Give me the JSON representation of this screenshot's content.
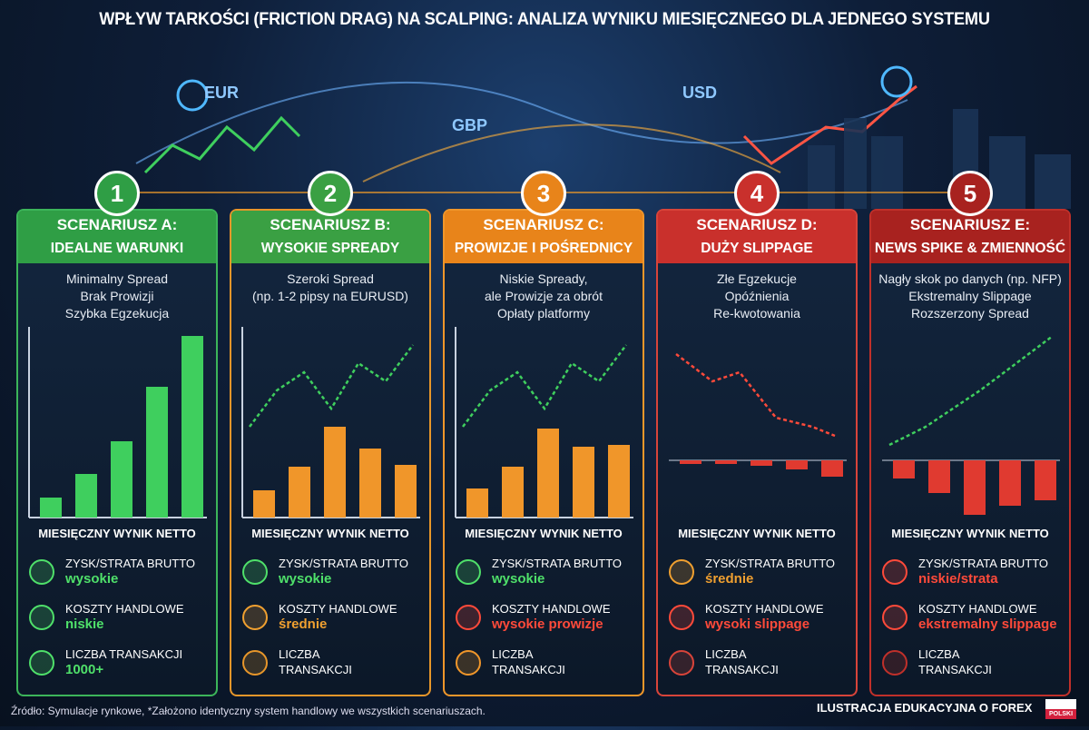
{
  "header": {
    "title": "WPŁYW TARKOŚCI (FRICTION DRAG) NA SCALPING: ANALIZA WYNIKU MIESIĘCZNEGO DLA JEDNEGO SYSTEMU"
  },
  "map_labels": [
    "EUR",
    "GBP",
    "USD"
  ],
  "panels": [
    {
      "number": 1,
      "title": "SCENARIUSZ A:",
      "subtitle": "IDEALNE WARUNKI",
      "color": "#2f9e45",
      "border": "#3cb55a",
      "description": [
        "Minimalny Spread",
        "Brak Prowizji",
        "Szybka Egzekucja"
      ],
      "bars": [
        11,
        24,
        42,
        72,
        100
      ],
      "bar_color": "#3fcf5e",
      "result_label": "MIESIĘCZNY WYNIK NETTO",
      "metrics": [
        {
          "label": "ZYSK/STRATA BRUTTO",
          "value": "wysokie",
          "color": "#4fe06a"
        },
        {
          "label": "KOSZTY HANDLOWE",
          "value": "niskie",
          "color": "#4fe06a"
        },
        {
          "label": "LICZBA TRANSAKCJI",
          "value": "1000+",
          "color": "#4fe06a"
        }
      ]
    },
    {
      "number": 2,
      "title": "SCENARIUSZ B:",
      "subtitle": "WYSOKIE SPREADY",
      "color": "#3aa043",
      "border": "#e7962a",
      "description": [
        "Szeroki Spread",
        "(np. 1-2 pipsy na EURUSD)"
      ],
      "bars": [
        15,
        28,
        50,
        38,
        29
      ],
      "bar_color": "#f0962a",
      "result_label": "MIESIĘCZNY WYNIK NETTO",
      "metrics": [
        {
          "label": "ZYSK/STRATA BRUTTO",
          "value": "wysokie",
          "color": "#4fe06a"
        },
        {
          "label": "KOSZTY HANDLOWE",
          "value": "średnie",
          "color": "#f0a030"
        },
        {
          "label": "LICZBA TRANSAKCJI"
        }
      ]
    },
    {
      "number": 3,
      "title": "SCENARIUSZ C:",
      "subtitle": "PROWIZJE I POŚREDNICY",
      "color": "#e8841a",
      "border": "#f0962a",
      "description": [
        "Niskie Spready,",
        "ale Prowizje za obrót",
        "Opłaty platformy"
      ],
      "bars": [
        16,
        28,
        49,
        39,
        40
      ],
      "bar_color": "#f0962a",
      "result_label": "MIESIĘCZNY WYNIK NETTO",
      "metrics": [
        {
          "label": "ZYSK/STRATA BRUTTO",
          "value": "wysokie",
          "color": "#4fe06a"
        },
        {
          "label": "KOSZTY HANDLOWE",
          "value": "wysokie prowizje",
          "color": "#ff4a3a"
        },
        {
          "label": "LICZBA TRANSAKCJI"
        }
      ]
    },
    {
      "number": 4,
      "title": "SCENARIUSZ D:",
      "subtitle": "DUŻY SLIPPAGE",
      "color": "#c9302c",
      "border": "#d8443a",
      "description": [
        "Złe Egzekucje",
        "Opóźnienia",
        "Re-kwotowania"
      ],
      "bars": [
        -2,
        -2,
        -3,
        -5,
        -9
      ],
      "bar_color": "#e03a30",
      "result_label": "MIESIĘCZNY WYNIK NETTO",
      "metrics": [
        {
          "label": "ZYSK/STRATA BRUTTO",
          "value": "średnie",
          "color": "#f0a030"
        },
        {
          "label": "KOSZTY HANDLOWE",
          "value": "wysoki slippage",
          "color": "#ff4a3a"
        },
        {
          "label": "LICZBA TRANSAKCJI"
        }
      ]
    },
    {
      "number": 5,
      "title": "SCENARIUSZ E:",
      "subtitle": "NEWS SPIKE & ZMIENNOŚĆ",
      "color": "#a8221f",
      "border": "#c0302a",
      "description": [
        "Nagły skok po danych (np. NFP)",
        "Ekstremalny Slippage",
        "Rozszerzony Spread"
      ],
      "bars": [
        -10,
        -18,
        -30,
        -25,
        -22
      ],
      "bar_color": "#e03a30",
      "result_label": "MIESIĘCZNY WYNIK NETTO",
      "metrics": [
        {
          "label": "ZYSK/STRATA BRUTTO",
          "value": "niskie/strata",
          "color": "#ff4a3a"
        },
        {
          "label": "KOSZTY HANDLOWE",
          "value": "ekstremalny slippage",
          "color": "#ff4a3a"
        },
        {
          "label": "LICZBA TRANSAKCJI"
        }
      ]
    }
  ],
  "footer": {
    "source": "Źródło: Symulacje rynkowe, *Założono identyczny system handlowy we wszystkich scenariuszach.",
    "badge": "ILUSTRACJA EDUKACYJNA O FOREX",
    "flag_label": "POLSKI"
  }
}
